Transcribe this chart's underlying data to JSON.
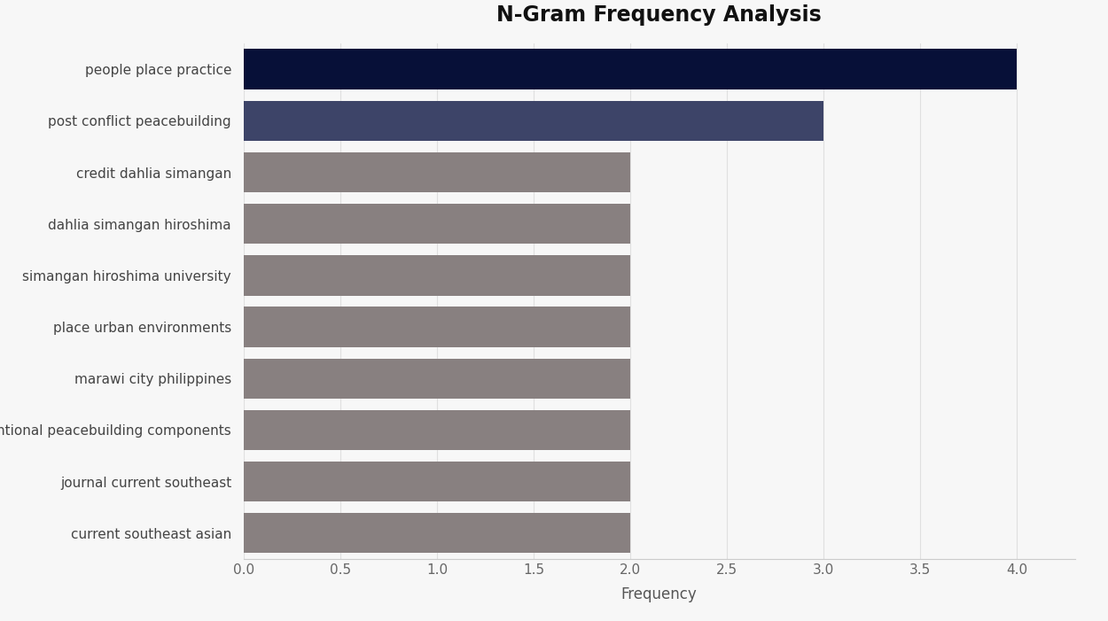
{
  "title": "N-Gram Frequency Analysis",
  "xlabel": "Frequency",
  "categories": [
    "current southeast asian",
    "journal current southeast",
    "conventional peacebuilding components",
    "marawi city philippines",
    "place urban environments",
    "simangan hiroshima university",
    "dahlia simangan hiroshima",
    "credit dahlia simangan",
    "post conflict peacebuilding",
    "people place practice"
  ],
  "values": [
    2,
    2,
    2,
    2,
    2,
    2,
    2,
    2,
    3,
    4
  ],
  "bar_colors": [
    "#888080",
    "#888080",
    "#888080",
    "#888080",
    "#888080",
    "#888080",
    "#888080",
    "#888080",
    "#3d4468",
    "#071038"
  ],
  "background_color": "#f7f7f7",
  "plot_bg_color": "#f7f7f7",
  "xlim": [
    0,
    4.3
  ],
  "xticks": [
    0.0,
    0.5,
    1.0,
    1.5,
    2.0,
    2.5,
    3.0,
    3.5,
    4.0
  ],
  "title_fontsize": 17,
  "label_fontsize": 12,
  "tick_fontsize": 11,
  "bar_height": 0.78
}
